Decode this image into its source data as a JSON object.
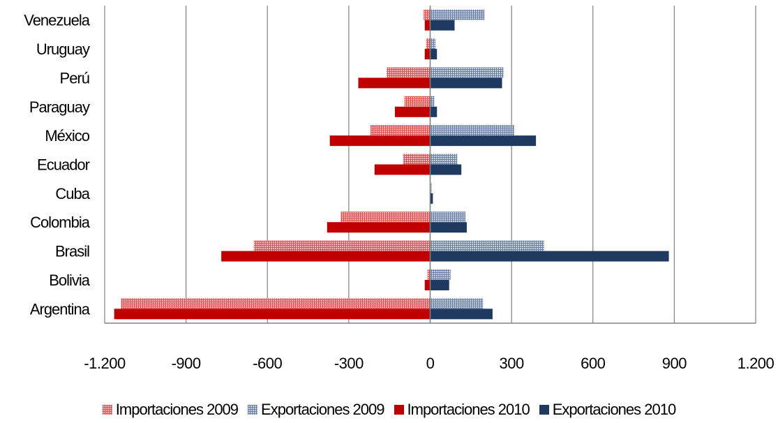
{
  "chart_data": {
    "type": "bar",
    "orientation": "horizontal",
    "categories": [
      "Venezuela",
      "Uruguay",
      "Perú",
      "Paraguay",
      "México",
      "Ecuador",
      "Cuba",
      "Colombia",
      "Brasil",
      "Bolivia",
      "Argentina"
    ],
    "series": [
      {
        "name": "Importaciones 2009",
        "color": "#f08080",
        "pattern": "grid",
        "values": [
          -25,
          -15,
          -160,
          -95,
          -220,
          -100,
          0,
          -330,
          -650,
          -10,
          -1140
        ]
      },
      {
        "name": "Exportaciones 2009",
        "color": "#9aaac4",
        "pattern": "grid",
        "values": [
          200,
          20,
          270,
          15,
          310,
          100,
          5,
          130,
          420,
          75,
          195
        ]
      },
      {
        "name": "Importaciones 2010",
        "color": "#c00000",
        "pattern": "solid",
        "values": [
          -20,
          -20,
          -265,
          -130,
          -370,
          -205,
          0,
          -380,
          -770,
          -20,
          -1165
        ]
      },
      {
        "name": "Exportaciones 2010",
        "color": "#1f3a60",
        "pattern": "solid",
        "values": [
          90,
          25,
          265,
          25,
          390,
          115,
          10,
          135,
          880,
          70,
          230
        ]
      }
    ],
    "x_ticks": [
      "-1.200",
      "-900",
      "-600",
      "-300",
      "0",
      "300",
      "600",
      "900",
      "1.200"
    ],
    "x_tick_values": [
      -1200,
      -900,
      -600,
      -300,
      0,
      300,
      600,
      900,
      1200
    ],
    "xlim": [
      -1200,
      1200
    ],
    "grid": "vertical",
    "legend_position": "bottom"
  }
}
